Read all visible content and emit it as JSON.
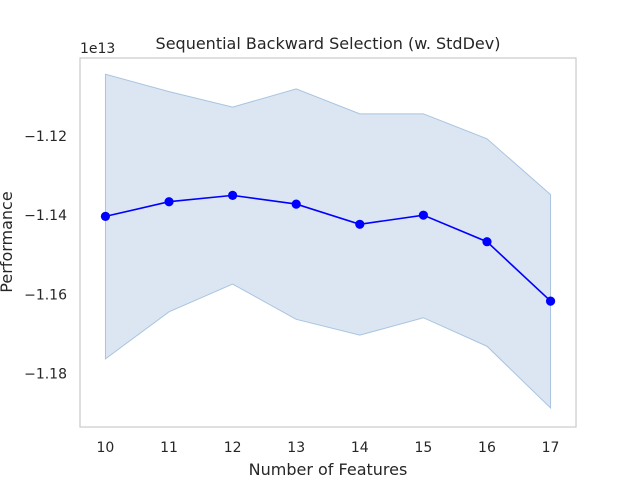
{
  "chart_data": {
    "type": "line",
    "title": "Sequential Backward Selection (w. StdDev)",
    "xlabel": "Number of Features",
    "ylabel": "Performance",
    "offset_label": "1e13",
    "x": [
      10,
      11,
      12,
      13,
      14,
      15,
      16,
      17
    ],
    "xlim": [
      9.6,
      17.4
    ],
    "ylim": [
      -1.1935,
      -1.1003
    ],
    "y_ticks": [
      -1.18,
      -1.16,
      -1.14,
      -1.12
    ],
    "y_tick_labels": [
      "−1.18",
      "−1.16",
      "−1.14",
      "−1.12"
    ],
    "series": [
      {
        "values": [
          -1.1403,
          -1.1366,
          -1.135,
          -1.1372,
          -1.1423,
          -1.14,
          -1.1467,
          -1.1617
        ],
        "upper": [
          -1.1044,
          -1.1088,
          -1.1127,
          -1.1081,
          -1.1144,
          -1.1144,
          -1.1207,
          -1.1348
        ],
        "lower": [
          -1.1763,
          -1.1644,
          -1.1574,
          -1.1663,
          -1.1703,
          -1.1659,
          -1.1731,
          -1.1887
        ],
        "color": "#0000ff",
        "band_color": "#a9c4e0"
      }
    ],
    "grid": false
  },
  "colors": {
    "spine": "#cccccc",
    "text": "#262626"
  }
}
